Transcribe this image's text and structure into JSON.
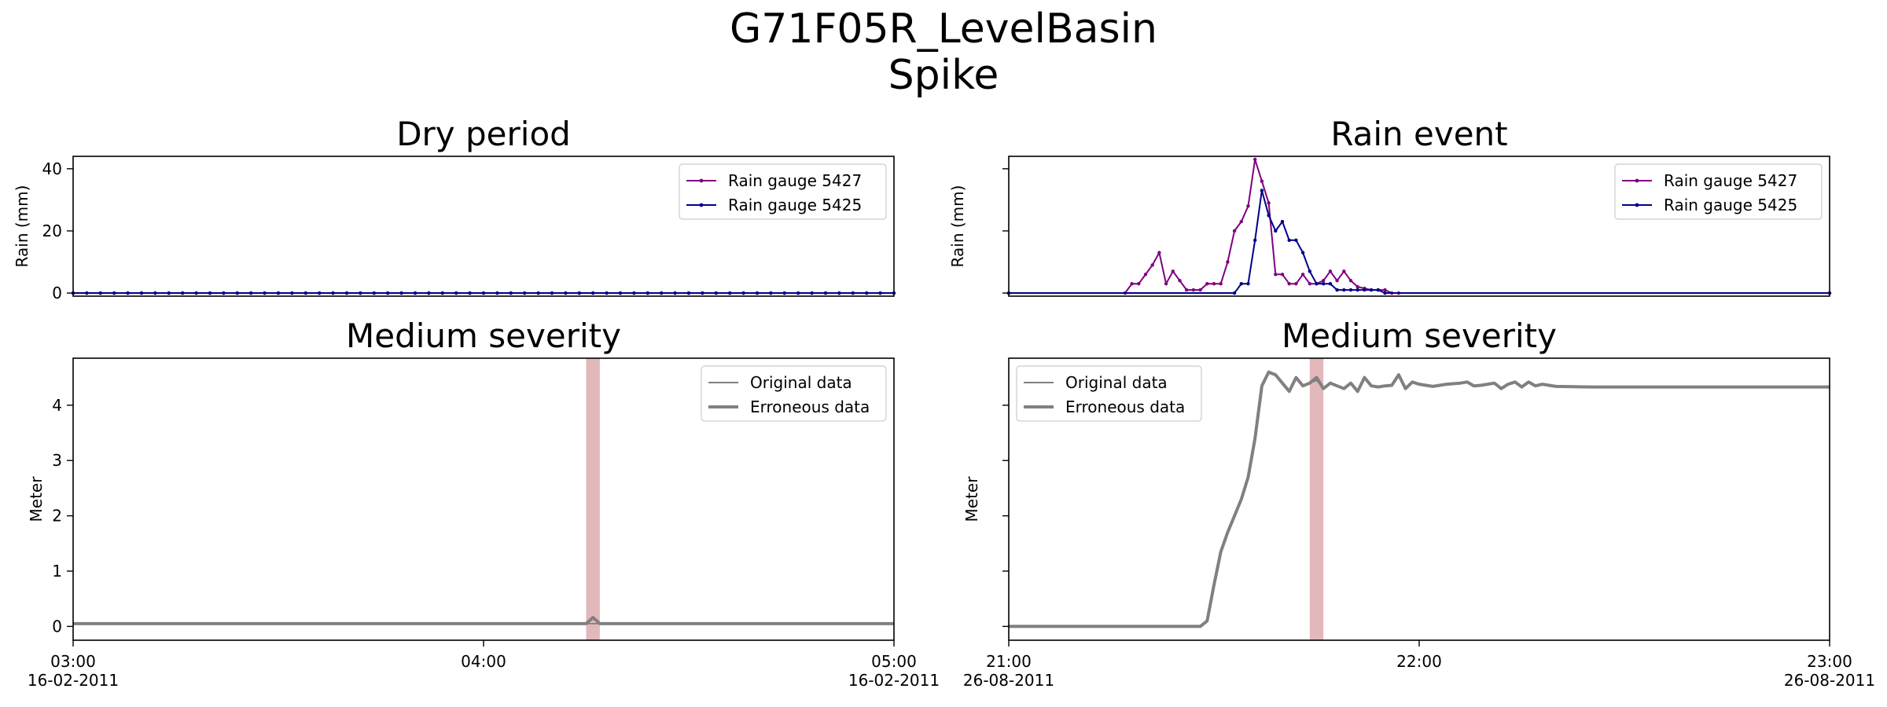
{
  "figure": {
    "title_line1": "G71F05R_LevelBasin",
    "title_line2": "Spike"
  },
  "colors": {
    "gauge_5427": "#800080",
    "gauge_5425": "#00008b",
    "level_line": "#808080",
    "spike_band": "#d8a0a4"
  },
  "chart_data": [
    {
      "panel": "top-left",
      "type": "line",
      "title": "Dry period",
      "ylabel": "Rain (mm)",
      "ylim": [
        -1,
        44
      ],
      "yticks": [
        "0",
        "20",
        "40"
      ],
      "ytick_values": [
        0,
        20,
        40
      ],
      "grid": false,
      "legend": "top-right",
      "x_minutes": [
        0,
        120
      ],
      "series": [
        {
          "name": "Rain gauge 5427",
          "color_key": "gauge_5427",
          "constant": 0,
          "marker_every_min": 2
        },
        {
          "name": "Rain gauge 5425",
          "color_key": "gauge_5425",
          "constant": 0,
          "marker_every_min": 2
        }
      ]
    },
    {
      "panel": "top-right",
      "type": "line",
      "title": "Rain event",
      "ylabel": "Rain (mm)",
      "ylim": [
        -1,
        44
      ],
      "yticks": [
        "",
        "",
        ""
      ],
      "ytick_values": [
        0,
        20,
        40
      ],
      "grid": false,
      "legend": "top-right",
      "x_minutes": [
        0,
        120
      ],
      "series": [
        {
          "name": "Rain gauge 5427",
          "color_key": "gauge_5427",
          "x": [
            0,
            17,
            18,
            19,
            20,
            21,
            22,
            23,
            24,
            25,
            26,
            27,
            28,
            29,
            30,
            31,
            32,
            33,
            34,
            35,
            36,
            37,
            38,
            39,
            40,
            41,
            42,
            43,
            44,
            45,
            46,
            47,
            48,
            49,
            50,
            51,
            52,
            53,
            54,
            55,
            56,
            57,
            120
          ],
          "y": [
            0,
            0,
            3,
            3,
            6,
            9,
            13,
            3,
            7,
            4,
            1,
            1,
            1,
            3,
            3,
            3,
            10,
            20,
            23,
            28,
            43,
            36,
            29,
            6,
            6,
            3,
            3,
            6,
            3,
            3,
            4,
            7,
            4,
            7,
            4,
            2,
            1.5,
            1,
            1,
            1,
            0,
            0,
            0
          ]
        },
        {
          "name": "Rain gauge 5425",
          "color_key": "gauge_5425",
          "x": [
            0,
            33,
            34,
            35,
            36,
            37,
            38,
            39,
            40,
            41,
            42,
            43,
            44,
            45,
            46,
            47,
            48,
            49,
            50,
            51,
            52,
            53,
            54,
            55,
            120
          ],
          "y": [
            0,
            0,
            3,
            3,
            17,
            33,
            25,
            20,
            23,
            17,
            17,
            13,
            7,
            3,
            3,
            3,
            1,
            1,
            1,
            1,
            1,
            1,
            1,
            0,
            0
          ]
        }
      ]
    },
    {
      "panel": "bottom-left",
      "type": "line",
      "title": "Medium severity",
      "ylabel": "Meter",
      "ylim": [
        -0.25,
        4.85
      ],
      "yticks": [
        "0",
        "1",
        "2",
        "3",
        "4"
      ],
      "ytick_values": [
        0,
        1,
        2,
        3,
        4
      ],
      "grid": false,
      "legend": "top-right",
      "xticks": [
        {
          "minutes": 0,
          "time": "03:00",
          "date": "16-02-2011"
        },
        {
          "minutes": 60,
          "time": "04:00",
          "date": ""
        },
        {
          "minutes": 120,
          "time": "05:00",
          "date": "16-02-2011"
        }
      ],
      "spike_window_min": [
        75,
        77
      ],
      "series": [
        {
          "name": "Original data",
          "color_key": "level_line",
          "width": "thin",
          "x": [
            0,
            20,
            40,
            60,
            75,
            76,
            77,
            80,
            100,
            120
          ],
          "y": [
            0.05,
            0.05,
            0.05,
            0.05,
            0.05,
            0.05,
            0.05,
            0.05,
            0.05,
            0.05
          ]
        },
        {
          "name": "Erroneous data",
          "color_key": "level_line",
          "width": "thick",
          "x": [
            0,
            20,
            40,
            60,
            75,
            76,
            77,
            80,
            100,
            120
          ],
          "y": [
            0.05,
            0.05,
            0.05,
            0.05,
            0.05,
            0.16,
            0.05,
            0.05,
            0.05,
            0.05
          ]
        }
      ]
    },
    {
      "panel": "bottom-right",
      "type": "line",
      "title": "Medium severity",
      "ylabel": "Meter",
      "ylim": [
        -0.25,
        4.85
      ],
      "yticks": [
        "",
        "",
        "",
        "",
        ""
      ],
      "ytick_values": [
        0,
        1,
        2,
        3,
        4
      ],
      "grid": false,
      "legend": "top-left",
      "xticks": [
        {
          "minutes": 0,
          "time": "21:00",
          "date": "26-08-2011"
        },
        {
          "minutes": 60,
          "time": "22:00",
          "date": ""
        },
        {
          "minutes": 120,
          "time": "23:00",
          "date": "26-08-2011"
        }
      ],
      "spike_window_min": [
        44,
        46
      ],
      "series": [
        {
          "name": "Original data",
          "color_key": "level_line",
          "width": "thin",
          "x": [
            0,
            28,
            29,
            30,
            31,
            32,
            33,
            34,
            35,
            36,
            37,
            38,
            39,
            40,
            41,
            42,
            43,
            44,
            45,
            46,
            47,
            48,
            49,
            50,
            51,
            52,
            53,
            54,
            55,
            56,
            57,
            58,
            59,
            60,
            62,
            64,
            66,
            67,
            68,
            69,
            70,
            71,
            72,
            73,
            74,
            75,
            76,
            77,
            78,
            80,
            85,
            90,
            100,
            110,
            120
          ],
          "y": [
            0,
            0,
            0.1,
            0.75,
            1.35,
            1.7,
            2.0,
            2.3,
            2.7,
            3.4,
            4.35,
            4.6,
            4.55,
            4.4,
            4.25,
            4.5,
            4.35,
            4.4,
            4.45,
            4.3,
            4.4,
            4.35,
            4.3,
            4.4,
            4.25,
            4.5,
            4.35,
            4.33,
            4.35,
            4.36,
            4.55,
            4.3,
            4.42,
            4.38,
            4.34,
            4.38,
            4.4,
            4.42,
            4.35,
            4.36,
            4.38,
            4.4,
            4.3,
            4.38,
            4.42,
            4.33,
            4.42,
            4.35,
            4.38,
            4.34,
            4.33,
            4.33,
            4.33,
            4.33,
            4.33
          ]
        },
        {
          "name": "Erroneous data",
          "color_key": "level_line",
          "width": "thick",
          "x": [
            0,
            28,
            29,
            30,
            31,
            32,
            33,
            34,
            35,
            36,
            37,
            38,
            39,
            40,
            41,
            42,
            43,
            44,
            45,
            46,
            47,
            48,
            49,
            50,
            51,
            52,
            53,
            54,
            55,
            56,
            57,
            58,
            59,
            60,
            62,
            64,
            66,
            67,
            68,
            69,
            70,
            71,
            72,
            73,
            74,
            75,
            76,
            77,
            78,
            80,
            85,
            90,
            100,
            110,
            120
          ],
          "y": [
            0,
            0,
            0.1,
            0.75,
            1.35,
            1.7,
            2.0,
            2.3,
            2.7,
            3.4,
            4.35,
            4.6,
            4.55,
            4.4,
            4.25,
            4.5,
            4.35,
            4.4,
            4.5,
            4.3,
            4.4,
            4.35,
            4.3,
            4.4,
            4.25,
            4.5,
            4.35,
            4.33,
            4.35,
            4.36,
            4.55,
            4.3,
            4.42,
            4.38,
            4.34,
            4.38,
            4.4,
            4.42,
            4.35,
            4.36,
            4.38,
            4.4,
            4.3,
            4.38,
            4.42,
            4.33,
            4.42,
            4.35,
            4.38,
            4.34,
            4.33,
            4.33,
            4.33,
            4.33,
            4.33
          ]
        }
      ]
    }
  ]
}
